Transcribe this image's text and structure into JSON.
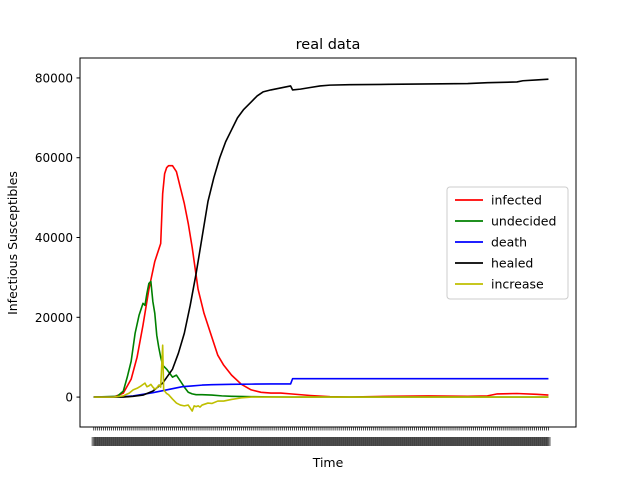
{
  "chart_data": {
    "type": "line",
    "title": "real data",
    "xlabel": "Time",
    "ylabel": "Infectious Susceptibles",
    "ylim": [
      -7500,
      85000
    ],
    "xlim": [
      -7,
      245
    ],
    "yticks": [
      0,
      20000,
      40000,
      60000,
      80000
    ],
    "ytick_labels": [
      "0",
      "20000",
      "40000",
      "60000",
      "80000"
    ],
    "xtick_count": 232,
    "xtick_labels_note": "",
    "legend_position": "center-right",
    "grid": false,
    "series": [
      {
        "name": "infected",
        "color": "#ff0000",
        "x": [
          0,
          10,
          15,
          19,
          22,
          25,
          28,
          31,
          34,
          35,
          36,
          37,
          38,
          40,
          42,
          44,
          46,
          48,
          50,
          53,
          56,
          60,
          63,
          66,
          70,
          75,
          80,
          85,
          90,
          95,
          100,
          110,
          120,
          130,
          150,
          170,
          190,
          200,
          205,
          215,
          225,
          231
        ],
        "y": [
          0,
          0,
          1000,
          4500,
          10000,
          18000,
          27000,
          34000,
          38500,
          51000,
          56000,
          57500,
          58000,
          58000,
          56500,
          52500,
          48500,
          43500,
          37500,
          27000,
          21000,
          15000,
          10500,
          8000,
          5500,
          3200,
          1800,
          1200,
          1000,
          1000,
          800,
          400,
          100,
          0,
          200,
          300,
          200,
          300,
          800,
          900,
          700,
          500
        ]
      },
      {
        "name": "undecided",
        "color": "#008000",
        "x": [
          0,
          12,
          15,
          17,
          19,
          21,
          23,
          25,
          26,
          27,
          28,
          29,
          30,
          31,
          32,
          33,
          34,
          35,
          37,
          40,
          42,
          44,
          46,
          48,
          50,
          52,
          55,
          60,
          65,
          70,
          80,
          90,
          100,
          231
        ],
        "y": [
          0,
          200,
          1500,
          5000,
          9000,
          16000,
          20500,
          23500,
          23000,
          26000,
          28500,
          29000,
          24000,
          21000,
          15500,
          12500,
          10000,
          8000,
          7000,
          5000,
          5500,
          4000,
          2500,
          1200,
          800,
          600,
          600,
          500,
          300,
          200,
          100,
          50,
          0,
          0
        ]
      },
      {
        "name": "death",
        "color": "#0000ff",
        "x": [
          0,
          15,
          20,
          25,
          30,
          35,
          40,
          45,
          50,
          55,
          60,
          70,
          80,
          90,
          100,
          101,
          110,
          150,
          200,
          231
        ],
        "y": [
          0,
          100,
          300,
          700,
          1100,
          1600,
          2100,
          2600,
          2800,
          3000,
          3100,
          3200,
          3250,
          3300,
          3300,
          4600,
          4600,
          4600,
          4600,
          4600
        ]
      },
      {
        "name": "healed",
        "color": "#000000",
        "x": [
          0,
          15,
          20,
          25,
          30,
          35,
          40,
          43,
          46,
          49,
          52,
          55,
          58,
          61,
          64,
          67,
          70,
          73,
          76,
          80,
          83,
          86,
          90,
          95,
          100,
          101,
          105,
          110,
          115,
          120,
          130,
          150,
          170,
          190,
          200,
          215,
          218,
          225,
          231
        ],
        "y": [
          0,
          0,
          200,
          500,
          1500,
          3500,
          7000,
          11000,
          16000,
          23000,
          31000,
          40000,
          49000,
          55000,
          60000,
          64000,
          67000,
          70000,
          72000,
          74000,
          75500,
          76500,
          77000,
          77500,
          78000,
          77000,
          77200,
          77600,
          78000,
          78200,
          78300,
          78400,
          78500,
          78600,
          78800,
          79000,
          79300,
          79500,
          79700
        ]
      },
      {
        "name": "increase",
        "color": "#bfbf00",
        "x": [
          0,
          10,
          15,
          18,
          20,
          22,
          24,
          26,
          27,
          28,
          29,
          30,
          31,
          32,
          33,
          34,
          35,
          35.5,
          36,
          36.5,
          37,
          38,
          40,
          42,
          44,
          46,
          48,
          50,
          51,
          52,
          53,
          54,
          55,
          58,
          60,
          63,
          66,
          70,
          75,
          80,
          90,
          231
        ],
        "y": [
          0,
          0,
          300,
          1000,
          1800,
          2200,
          2800,
          3500,
          2600,
          2800,
          3200,
          2500,
          2000,
          2300,
          3000,
          2500,
          13000,
          2000,
          1500,
          1200,
          900,
          600,
          -500,
          -1500,
          -2000,
          -2200,
          -2000,
          -3500,
          -2200,
          -2400,
          -2200,
          -2500,
          -2000,
          -1500,
          -1600,
          -1000,
          -1000,
          -600,
          -200,
          0,
          0,
          0
        ]
      }
    ]
  }
}
